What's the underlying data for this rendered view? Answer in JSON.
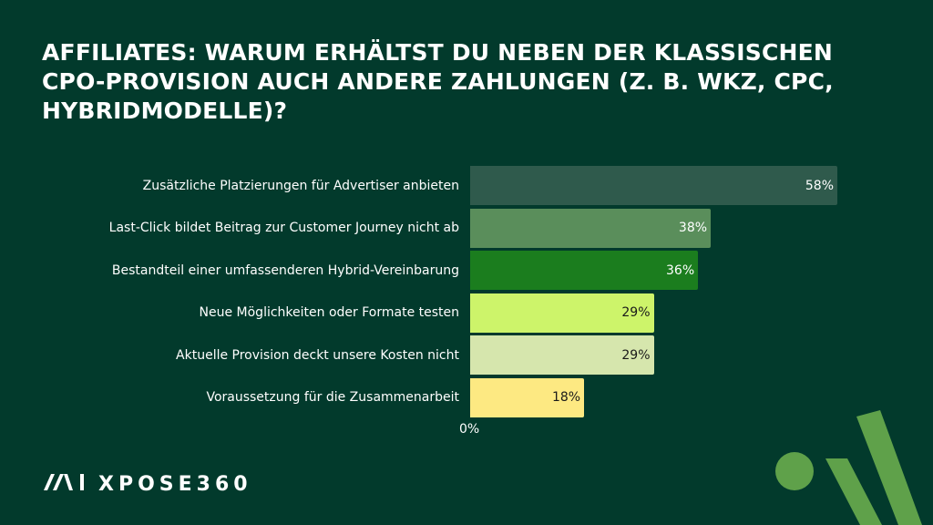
{
  "title": "Affiliates: Warum erhältst du neben der klassischen CPO-Provision auch andere Zahlungen (z. B. WKZ, CPC, Hybridmodelle)?",
  "logo_text": "MAI XPOSE360",
  "chart_data": {
    "type": "bar",
    "orientation": "horizontal",
    "categories": [
      "Zusätzliche Platzierungen für Advertiser anbieten",
      "Last-Click bildet Beitrag zur Customer Journey nicht ab",
      "Bestandteil einer umfassenderen Hybrid-Vereinbarung",
      "Neue Möglichkeiten oder Formate testen",
      "Aktuelle Provision deckt unsere Kosten nicht",
      "Voraussetzung für die Zusammenarbeit"
    ],
    "values": [
      58,
      38,
      36,
      29,
      29,
      18
    ],
    "value_labels": [
      "58%",
      "38%",
      "36%",
      "29%",
      "29%",
      "18%"
    ],
    "bar_colors": [
      "#2f5a4c",
      "#5a8e5b",
      "#1b7d1e",
      "#cdf46a",
      "#d6e6ad",
      "#fde982"
    ],
    "value_label_colors": [
      "#ffffff",
      "#ffffff",
      "#ffffff",
      "#1a1a1a",
      "#1a1a1a",
      "#1a1a1a"
    ],
    "x_tick_label": "0%",
    "xlim": [
      0,
      58
    ],
    "grid": false
  },
  "colors": {
    "background": "#023a2c",
    "accent": "#5fa14a"
  }
}
